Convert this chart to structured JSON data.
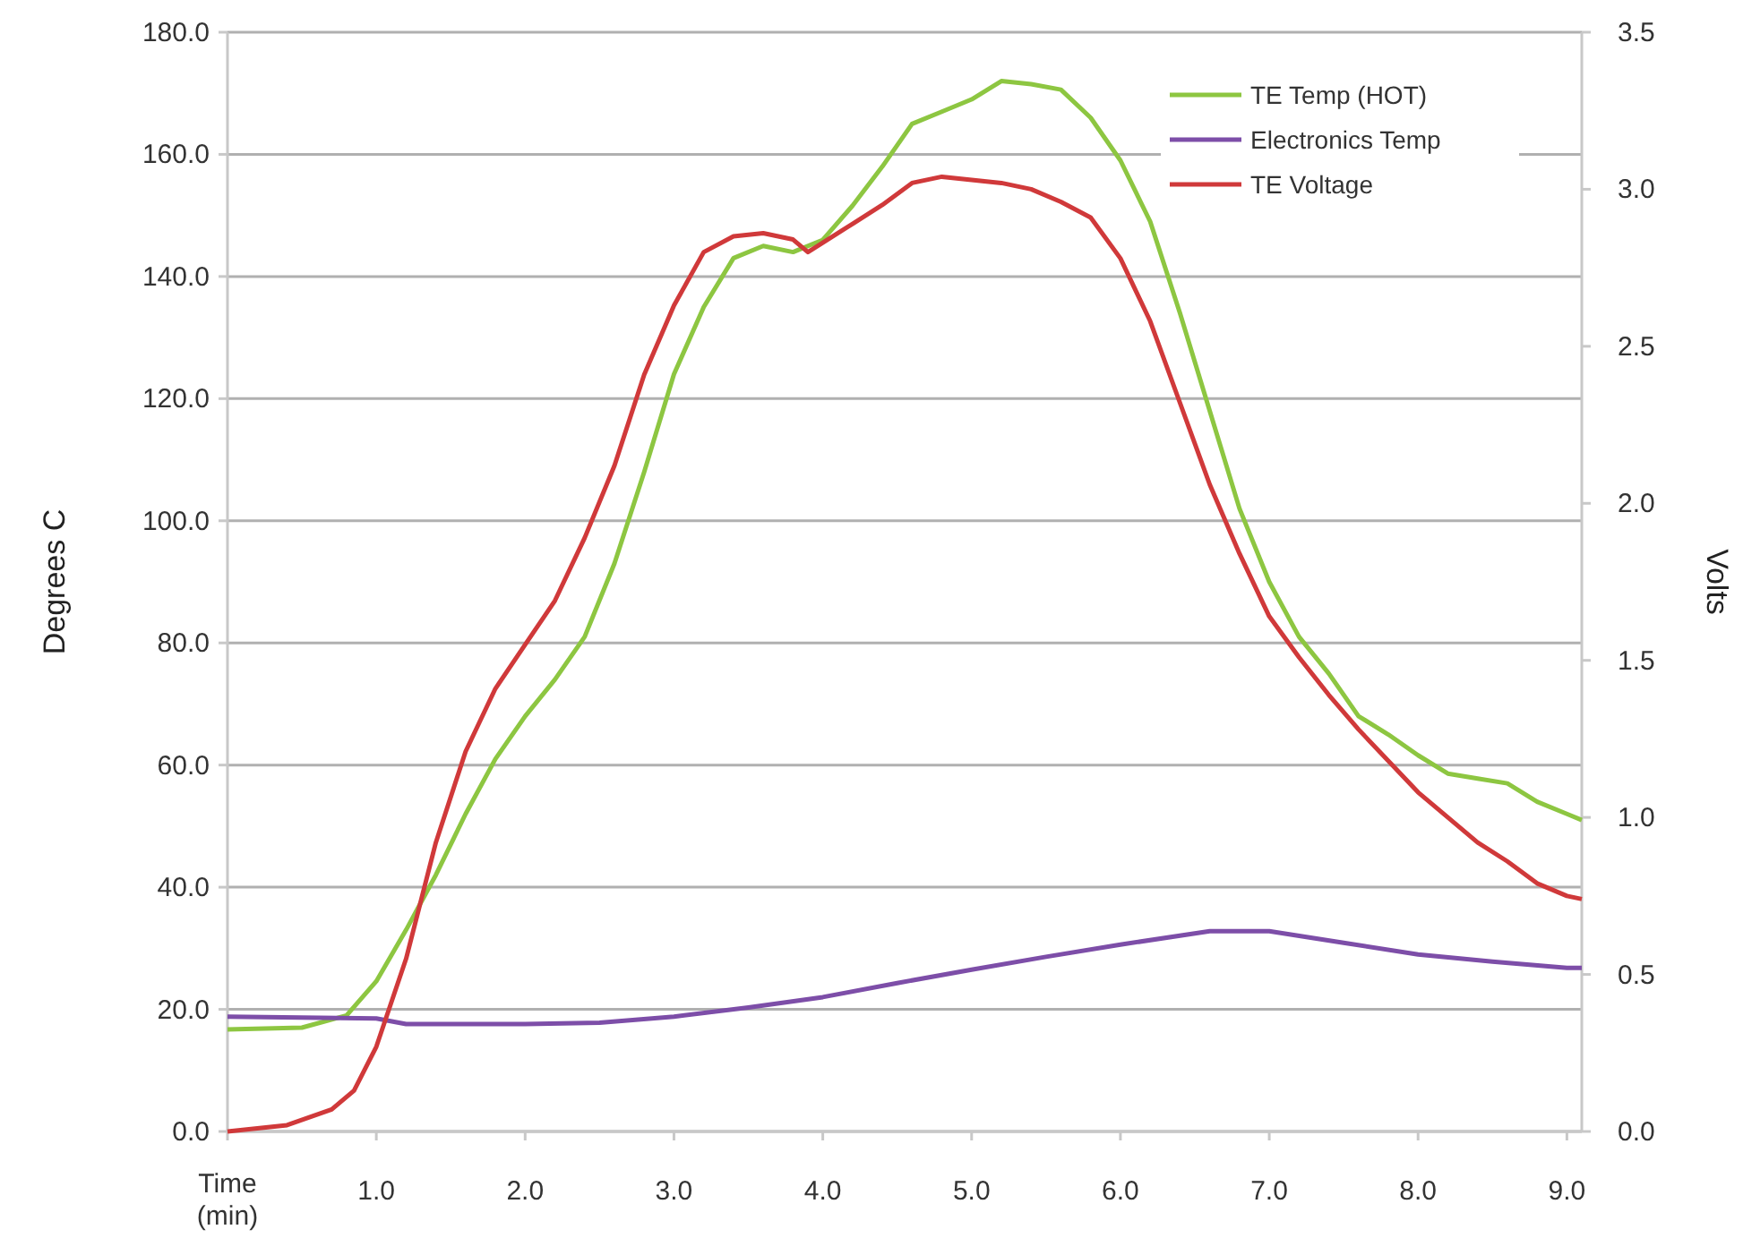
{
  "chart_data": {
    "type": "line",
    "xlabel": "Time (min)",
    "ylabel": "Degrees C",
    "y2label": "Volts",
    "xlim": [
      0,
      9.1
    ],
    "xticks": [
      {
        "value": 0,
        "label": null
      },
      {
        "value": 1,
        "label": "1.0"
      },
      {
        "value": 2,
        "label": "2.0"
      },
      {
        "value": 3,
        "label": "3.0"
      },
      {
        "value": 4,
        "label": "4.0"
      },
      {
        "value": 5,
        "label": "5.0"
      },
      {
        "value": 6,
        "label": "6.0"
      },
      {
        "value": 7,
        "label": "7.0"
      },
      {
        "value": 8,
        "label": "8.0"
      },
      {
        "value": 9,
        "label": "9.0"
      }
    ],
    "ylim": [
      0,
      180
    ],
    "yticks": [
      {
        "value": 0,
        "label": "0.0"
      },
      {
        "value": 20,
        "label": "20.0"
      },
      {
        "value": 40,
        "label": "40.0"
      },
      {
        "value": 60,
        "label": "60.0"
      },
      {
        "value": 80,
        "label": "80.0"
      },
      {
        "value": 100,
        "label": "100.0"
      },
      {
        "value": 120,
        "label": "120.0"
      },
      {
        "value": 140,
        "label": "140.0"
      },
      {
        "value": 160,
        "label": "160.0"
      },
      {
        "value": 180,
        "label": "180.0"
      }
    ],
    "y2lim": [
      0,
      3.5
    ],
    "y2ticks": [
      {
        "value": 0,
        "label": "0.0"
      },
      {
        "value": 0.5,
        "label": "0.5"
      },
      {
        "value": 1,
        "label": "1.0"
      },
      {
        "value": 1.5,
        "label": "1.5"
      },
      {
        "value": 2,
        "label": "2.0"
      },
      {
        "value": 2.5,
        "label": "2.5"
      },
      {
        "value": 3,
        "label": "3.0"
      },
      {
        "value": 3.5,
        "label": "3.5"
      }
    ],
    "grid": "y",
    "legend": "top right",
    "marker": "none",
    "line_style": "solid",
    "series": [
      {
        "name": "TE Temp (HOT)",
        "color": "#8dc641",
        "x": [
          0,
          0.5,
          0.8,
          1.0,
          1.2,
          1.4,
          1.6,
          1.8,
          2.0,
          2.2,
          2.4,
          2.6,
          2.8,
          3.0,
          3.2,
          3.4,
          3.6,
          3.8,
          4.0,
          4.2,
          4.4,
          4.6,
          4.8,
          5.0,
          5.2,
          5.4,
          5.6,
          5.8,
          6.0,
          6.2,
          6.4,
          6.6,
          6.8,
          7.0,
          7.2,
          7.4,
          7.6,
          7.8,
          8.0,
          8.2,
          8.4,
          8.6,
          8.8,
          9.0,
          9.1
        ],
        "values": [
          16.7,
          17,
          19,
          24.6,
          33,
          42,
          52,
          61,
          68,
          74,
          81,
          93,
          108,
          124,
          135,
          143,
          145,
          144,
          146,
          151.6,
          158,
          165,
          167,
          169,
          172,
          171.5,
          170.6,
          166,
          159,
          149,
          134,
          118,
          102,
          90,
          81,
          75,
          68,
          65,
          61.6,
          58.6,
          57.8,
          57,
          54,
          52,
          51
        ]
      },
      {
        "name": "Electronics Temp",
        "color": "#7d4ea8",
        "x": [
          0,
          1.0,
          1.2,
          2.0,
          2.5,
          3.0,
          3.5,
          4.0,
          4.5,
          5.0,
          5.5,
          6.0,
          6.6,
          7.0,
          7.5,
          8.0,
          8.5,
          9.0,
          9.1
        ],
        "values": [
          18.8,
          18.5,
          17.6,
          17.6,
          17.8,
          18.8,
          20.3,
          22,
          24.3,
          26.5,
          28.6,
          30.6,
          32.8,
          32.8,
          30.9,
          29,
          27.8,
          26.8,
          26.8
        ]
      },
      {
        "name": "TE Voltage",
        "color": "#d0393a",
        "axis": "y2",
        "x": [
          0,
          0.4,
          0.7,
          0.85,
          1.0,
          1.2,
          1.4,
          1.6,
          1.8,
          2.0,
          2.2,
          2.4,
          2.6,
          2.8,
          3.0,
          3.2,
          3.4,
          3.6,
          3.8,
          3.9,
          4.0,
          4.2,
          4.4,
          4.6,
          4.8,
          5.0,
          5.2,
          5.4,
          5.6,
          5.8,
          6.0,
          6.2,
          6.4,
          6.6,
          6.8,
          7.0,
          7.2,
          7.4,
          7.6,
          7.8,
          8.0,
          8.2,
          8.4,
          8.6,
          8.8,
          9.0,
          9.1
        ],
        "values": [
          0,
          0.02,
          0.07,
          0.13,
          0.27,
          0.55,
          0.92,
          1.21,
          1.41,
          1.55,
          1.69,
          1.89,
          2.12,
          2.41,
          2.63,
          2.8,
          2.85,
          2.86,
          2.84,
          2.8,
          2.83,
          2.89,
          2.95,
          3.02,
          3.04,
          3.03,
          3.02,
          3.0,
          2.96,
          2.91,
          2.78,
          2.58,
          2.32,
          2.06,
          1.84,
          1.64,
          1.51,
          1.39,
          1.28,
          1.18,
          1.08,
          1.0,
          0.92,
          0.86,
          0.79,
          0.75,
          0.74
        ]
      }
    ]
  }
}
